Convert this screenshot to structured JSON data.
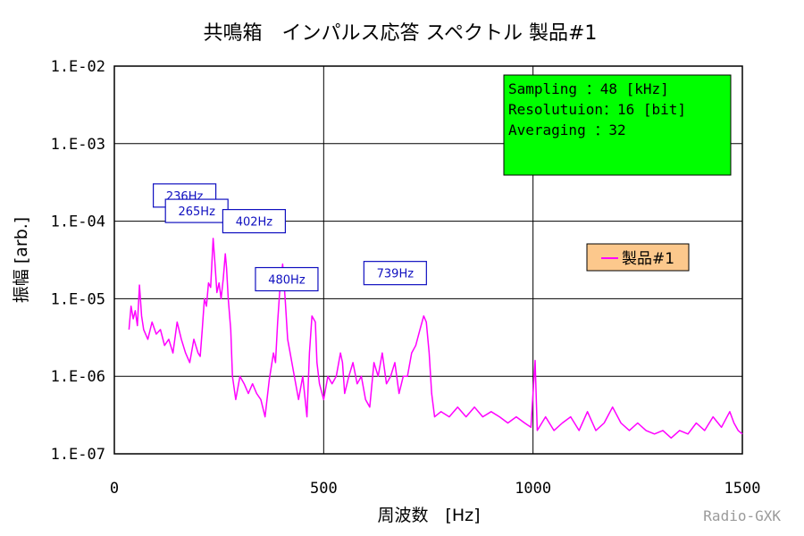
{
  "chart_data": {
    "type": "line",
    "title": "共鳴箱　インパルス応答 スペクトル 製品#1",
    "xlabel": "周波数　[Hz]",
    "ylabel": "振幅 [arb.]",
    "xlim": [
      0,
      1500
    ],
    "ylim": [
      1e-07,
      0.01
    ],
    "yscale": "log",
    "grid": true,
    "x_ticks": [
      "0",
      "500",
      "1000",
      "1500"
    ],
    "y_ticks": [
      "1.E-02",
      "1.E-03",
      "1.E-04",
      "1.E-05",
      "1.E-06",
      "1.E-07"
    ],
    "legend": {
      "entries": [
        "製品#1"
      ],
      "placement": "right",
      "bg_color": "#fcc88c"
    },
    "line_color": "#ff00ff",
    "series": [
      {
        "name": "製品#1",
        "points": [
          [
            35,
            4e-06
          ],
          [
            40,
            8e-06
          ],
          [
            45,
            5.5e-06
          ],
          [
            50,
            7e-06
          ],
          [
            55,
            4.5e-06
          ],
          [
            60,
            1.5e-05
          ],
          [
            65,
            6e-06
          ],
          [
            70,
            4e-06
          ],
          [
            80,
            3e-06
          ],
          [
            90,
            5e-06
          ],
          [
            100,
            3.5e-06
          ],
          [
            110,
            4e-06
          ],
          [
            120,
            2.5e-06
          ],
          [
            130,
            3e-06
          ],
          [
            140,
            2e-06
          ],
          [
            150,
            5e-06
          ],
          [
            160,
            3e-06
          ],
          [
            170,
            2e-06
          ],
          [
            180,
            1.5e-06
          ],
          [
            190,
            3e-06
          ],
          [
            200,
            2e-06
          ],
          [
            205,
            1.8e-06
          ],
          [
            210,
            4e-06
          ],
          [
            215,
            1e-05
          ],
          [
            220,
            8e-06
          ],
          [
            225,
            1.6e-05
          ],
          [
            230,
            1.4e-05
          ],
          [
            236,
            6e-05
          ],
          [
            240,
            3e-05
          ],
          [
            245,
            1.2e-05
          ],
          [
            250,
            1.6e-05
          ],
          [
            255,
            1e-05
          ],
          [
            260,
            1.8e-05
          ],
          [
            265,
            3.8e-05
          ],
          [
            268,
            2.5e-05
          ],
          [
            272,
            1e-05
          ],
          [
            278,
            4e-06
          ],
          [
            282,
            1e-06
          ],
          [
            290,
            5e-07
          ],
          [
            300,
            1e-06
          ],
          [
            310,
            8e-07
          ],
          [
            320,
            6e-07
          ],
          [
            330,
            8e-07
          ],
          [
            340,
            6e-07
          ],
          [
            350,
            5e-07
          ],
          [
            360,
            3e-07
          ],
          [
            370,
            9e-07
          ],
          [
            380,
            2e-06
          ],
          [
            385,
            1.5e-06
          ],
          [
            390,
            5e-06
          ],
          [
            396,
            1.5e-05
          ],
          [
            402,
            2.8e-05
          ],
          [
            408,
            1e-05
          ],
          [
            414,
            3e-06
          ],
          [
            420,
            2e-06
          ],
          [
            430,
            1e-06
          ],
          [
            440,
            5e-07
          ],
          [
            450,
            1e-06
          ],
          [
            460,
            3e-07
          ],
          [
            466,
            2e-06
          ],
          [
            472,
            6e-06
          ],
          [
            480,
            5e-06
          ],
          [
            484,
            1.5e-06
          ],
          [
            490,
            8e-07
          ],
          [
            500,
            5e-07
          ],
          [
            510,
            1e-06
          ],
          [
            520,
            8e-07
          ],
          [
            530,
            1e-06
          ],
          [
            540,
            2e-06
          ],
          [
            545,
            1.5e-06
          ],
          [
            550,
            6e-07
          ],
          [
            560,
            1e-06
          ],
          [
            570,
            1.5e-06
          ],
          [
            580,
            8e-07
          ],
          [
            590,
            1e-06
          ],
          [
            600,
            5e-07
          ],
          [
            610,
            4e-07
          ],
          [
            620,
            1.5e-06
          ],
          [
            630,
            1e-06
          ],
          [
            640,
            2e-06
          ],
          [
            650,
            8e-07
          ],
          [
            660,
            1e-06
          ],
          [
            670,
            1.5e-06
          ],
          [
            680,
            6e-07
          ],
          [
            690,
            1e-06
          ],
          [
            700,
            1e-06
          ],
          [
            710,
            2e-06
          ],
          [
            720,
            2.5e-06
          ],
          [
            730,
            4e-06
          ],
          [
            739,
            6e-06
          ],
          [
            745,
            5e-06
          ],
          [
            752,
            2e-06
          ],
          [
            758,
            6e-07
          ],
          [
            765,
            3e-07
          ],
          [
            780,
            3.5e-07
          ],
          [
            800,
            3e-07
          ],
          [
            820,
            4e-07
          ],
          [
            840,
            3e-07
          ],
          [
            860,
            4e-07
          ],
          [
            880,
            3e-07
          ],
          [
            900,
            3.5e-07
          ],
          [
            920,
            3e-07
          ],
          [
            940,
            2.5e-07
          ],
          [
            960,
            3e-07
          ],
          [
            980,
            2.5e-07
          ],
          [
            995,
            2.2e-07
          ],
          [
            1005,
            1.6e-06
          ],
          [
            1010,
            2e-07
          ],
          [
            1030,
            3e-07
          ],
          [
            1050,
            2e-07
          ],
          [
            1070,
            2.5e-07
          ],
          [
            1090,
            3e-07
          ],
          [
            1110,
            2e-07
          ],
          [
            1130,
            3.5e-07
          ],
          [
            1150,
            2e-07
          ],
          [
            1170,
            2.5e-07
          ],
          [
            1190,
            4e-07
          ],
          [
            1210,
            2.5e-07
          ],
          [
            1230,
            2e-07
          ],
          [
            1250,
            2.5e-07
          ],
          [
            1270,
            2e-07
          ],
          [
            1290,
            1.8e-07
          ],
          [
            1310,
            2e-07
          ],
          [
            1330,
            1.6e-07
          ],
          [
            1350,
            2e-07
          ],
          [
            1370,
            1.8e-07
          ],
          [
            1390,
            2.5e-07
          ],
          [
            1410,
            2e-07
          ],
          [
            1430,
            3e-07
          ],
          [
            1450,
            2.2e-07
          ],
          [
            1470,
            3.5e-07
          ],
          [
            1480,
            2.5e-07
          ],
          [
            1490,
            2e-07
          ],
          [
            1500,
            1.8e-07
          ]
        ]
      }
    ],
    "annotations": [
      {
        "label": "236Hz",
        "x": 236,
        "y": 6e-05
      },
      {
        "label": "265Hz",
        "x": 265,
        "y": 3.8e-05
      },
      {
        "label": "402Hz",
        "x": 402,
        "y": 2.8e-05
      },
      {
        "label": "480Hz",
        "x": 480,
        "y": 5e-06
      },
      {
        "label": "739Hz",
        "x": 739,
        "y": 6e-06
      }
    ],
    "info_box": {
      "lines": [
        "Sampling  ：48 [kHz]",
        "Resolutuion：16 [bit]",
        "Averaging  ：32"
      ],
      "bg_color": "#00ff00"
    }
  },
  "credit": "Radio-GXK"
}
